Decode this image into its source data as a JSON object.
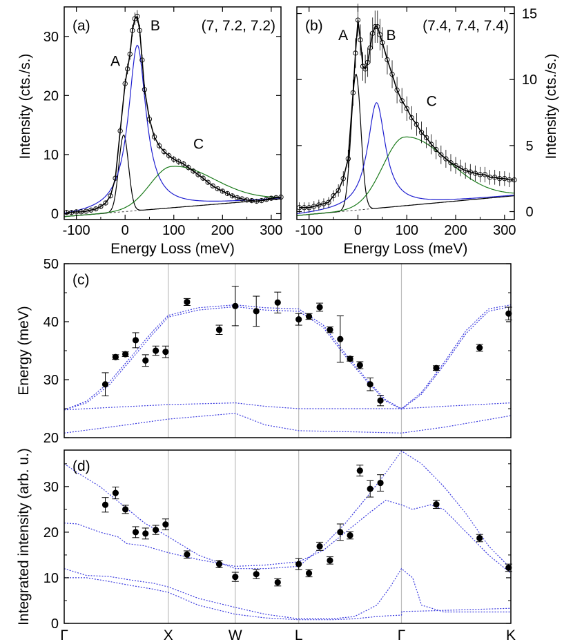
{
  "colors": {
    "black": "#000000",
    "blue": "#1f1fd0",
    "green": "#1a7a1a",
    "grey": "#bbbbbb",
    "fit_blue": "#3a3adf"
  },
  "chart_data": [
    {
      "type": "line",
      "panel_label": "(a)",
      "q_label": "(7, 7.2, 7.2)",
      "xlabel": "Energy Loss (meV)",
      "ylabel": "Intensity (cts./s.)",
      "xlim": [
        -125,
        320
      ],
      "ylim": [
        -1,
        35
      ],
      "xticks": [
        -100,
        0,
        100,
        200,
        300
      ],
      "yticks": [
        0,
        10,
        20,
        30
      ],
      "peak_labels": [
        {
          "text": "A",
          "color": "#000000",
          "x": -30,
          "y": 25
        },
        {
          "text": "B",
          "color": "#1f1fd0",
          "x": 52,
          "y": 31
        },
        {
          "text": "C",
          "color": "#1a7a1a",
          "x": 140,
          "y": 11
        }
      ],
      "components": [
        {
          "name": "A",
          "shape": "gaussian",
          "center": -3,
          "amp": 13,
          "width": 10,
          "color": "#000000"
        },
        {
          "name": "B",
          "shape": "lorentzian",
          "center": 25,
          "amp": 28,
          "width": 22,
          "color": "#1f1fd0"
        },
        {
          "name": "C",
          "shape": "skewed",
          "center": 95,
          "amp": 7,
          "width": 55,
          "color": "#1a7a1a"
        }
      ],
      "background": {
        "y0": -0.5,
        "y_end": 2.5
      },
      "data_points": {
        "x": [
          -120,
          -110,
          -100,
          -90,
          -80,
          -70,
          -60,
          -50,
          -40,
          -30,
          -20,
          -10,
          0,
          5,
          10,
          15,
          20,
          25,
          30,
          35,
          40,
          50,
          60,
          70,
          80,
          90,
          100,
          110,
          120,
          130,
          140,
          150,
          160,
          170,
          180,
          190,
          200,
          210,
          220,
          230,
          240,
          250,
          260,
          270,
          280,
          290,
          300,
          310,
          320
        ],
        "y": [
          0.2,
          0.2,
          0.3,
          0.3,
          0.4,
          0.6,
          0.8,
          1.2,
          1.8,
          3,
          6,
          14,
          22,
          24.5,
          27,
          31,
          33,
          33.4,
          31,
          26,
          21,
          16,
          13,
          11.5,
          10.5,
          9.8,
          9.2,
          8.8,
          8.4,
          7.8,
          7.2,
          6.6,
          6,
          5.3,
          4.7,
          4.2,
          3.8,
          3.4,
          3,
          2.7,
          2.5,
          2.3,
          2.2,
          2.1,
          2.2,
          2.4,
          2.6,
          2.7,
          2.8
        ]
      }
    },
    {
      "type": "line",
      "panel_label": "(b)",
      "q_label": "(7.4, 7.4, 7.4)",
      "xlabel": "Energy Loss (meV)",
      "ylabel": "Intensity (cts./s.)",
      "xlim": [
        -125,
        320
      ],
      "ylim": [
        -0.6,
        15.5
      ],
      "xticks": [
        -100,
        0,
        100,
        200,
        300
      ],
      "yticks": [
        0,
        5,
        10,
        15
      ],
      "peak_labels": [
        {
          "text": "A",
          "color": "#000000",
          "x": -40,
          "y": 13
        },
        {
          "text": "B",
          "color": "#1f1fd0",
          "x": 58,
          "y": 13
        },
        {
          "text": "C",
          "color": "#1a7a1a",
          "x": 140,
          "y": 8
        }
      ],
      "components": [
        {
          "name": "A",
          "shape": "gaussian",
          "center": -4,
          "amp": 10.3,
          "width": 10,
          "color": "#000000"
        },
        {
          "name": "B",
          "shape": "lorentzian",
          "center": 38,
          "amp": 8,
          "width": 22,
          "color": "#1f1fd0"
        },
        {
          "name": "C",
          "shape": "skewed",
          "center": 95,
          "amp": 5.2,
          "width": 55,
          "color": "#1a7a1a"
        }
      ],
      "background": {
        "y0": -0.3,
        "y_end": 1.2
      },
      "data_points": {
        "x": [
          -120,
          -110,
          -100,
          -90,
          -80,
          -70,
          -60,
          -50,
          -40,
          -30,
          -20,
          -10,
          -5,
          0,
          5,
          10,
          15,
          20,
          25,
          30,
          35,
          40,
          45,
          50,
          60,
          70,
          80,
          90,
          100,
          110,
          120,
          130,
          140,
          150,
          160,
          170,
          180,
          190,
          200,
          210,
          220,
          230,
          240,
          250,
          260,
          270,
          280,
          290,
          300,
          310,
          320
        ],
        "y": [
          0.3,
          0.3,
          0.3,
          0.4,
          0.5,
          0.6,
          0.7,
          1.2,
          1.6,
          2.5,
          4,
          9,
          12,
          14.5,
          13,
          11,
          10.8,
          11.3,
          12.4,
          13.5,
          14,
          14,
          13.4,
          12.8,
          11.5,
          10.4,
          9.2,
          8.4,
          7.8,
          7.1,
          6.6,
          6,
          5.6,
          5.1,
          4.7,
          4.3,
          4,
          3.7,
          3.5,
          3.3,
          3.1,
          3,
          2.9,
          2.8,
          2.8,
          2.6,
          2.6,
          2.5,
          2.5,
          2.4,
          2.4
        ]
      }
    },
    {
      "type": "scatter",
      "panel_label": "(c)",
      "ylabel": "Energy (meV)",
      "ylim": [
        20,
        50
      ],
      "yticks": [
        20,
        30,
        40,
        50
      ],
      "xlim": [
        0,
        10
      ],
      "xtick_labels": [
        {
          "label": "Γ",
          "x": 0
        },
        {
          "label": "X",
          "x": 2.33
        },
        {
          "label": "W",
          "x": 3.83
        },
        {
          "label": "L",
          "x": 5.25
        },
        {
          "label": "Γ",
          "x": 7.55
        },
        {
          "label": "K",
          "x": 10
        }
      ],
      "points": [
        {
          "x": 0.92,
          "y": 29.2,
          "err": 2.0
        },
        {
          "x": 1.15,
          "y": 33.9,
          "err": 0.4
        },
        {
          "x": 1.37,
          "y": 34.4,
          "err": 0.4
        },
        {
          "x": 1.6,
          "y": 36.8,
          "err": 1.3
        },
        {
          "x": 1.82,
          "y": 33.3,
          "err": 1.0
        },
        {
          "x": 2.05,
          "y": 35.0,
          "err": 0.8
        },
        {
          "x": 2.27,
          "y": 34.8,
          "err": 1.0
        },
        {
          "x": 2.75,
          "y": 43.4,
          "err": 0.6
        },
        {
          "x": 3.47,
          "y": 38.6,
          "err": 0.8
        },
        {
          "x": 3.83,
          "y": 42.7,
          "err": 3.4
        },
        {
          "x": 4.3,
          "y": 41.8,
          "err": 2.6
        },
        {
          "x": 4.78,
          "y": 43.3,
          "err": 1.8
        },
        {
          "x": 5.25,
          "y": 40.4,
          "err": 1.0
        },
        {
          "x": 5.48,
          "y": 40.9,
          "err": 0.5
        },
        {
          "x": 5.72,
          "y": 42.5,
          "err": 0.7
        },
        {
          "x": 5.95,
          "y": 38.6,
          "err": 0.5
        },
        {
          "x": 6.18,
          "y": 37.0,
          "err": 4.0
        },
        {
          "x": 6.4,
          "y": 33.6,
          "err": 0.4
        },
        {
          "x": 6.62,
          "y": 32.5,
          "err": 0.6
        },
        {
          "x": 6.85,
          "y": 29.2,
          "err": 1.1
        },
        {
          "x": 7.08,
          "y": 26.4,
          "err": 0.9
        },
        {
          "x": 8.33,
          "y": 32.0,
          "err": 0.4
        },
        {
          "x": 9.3,
          "y": 35.5,
          "err": 0.6
        },
        {
          "x": 9.95,
          "y": 41.4,
          "err": 1.1
        }
      ],
      "model_curves": [
        {
          "x": [
            0,
            0.5,
            1,
            1.5,
            2,
            2.33,
            3,
            3.83,
            4.5,
            5.25,
            5.8,
            6.3,
            6.8,
            7.2,
            7.55,
            8,
            8.5,
            9,
            9.5,
            10
          ],
          "y": [
            24.8,
            26,
            29,
            33.5,
            38,
            40.8,
            42,
            42.6,
            42,
            41.8,
            39,
            34,
            29.5,
            26.3,
            24.9,
            27.5,
            32.5,
            38,
            41.8,
            42.6
          ]
        },
        {
          "x": [
            0,
            0.5,
            1,
            1.5,
            2,
            2.33,
            3,
            3.83,
            4.5,
            5.25,
            5.8,
            6.3,
            6.8,
            7.2,
            7.55,
            8,
            8.5,
            9,
            9.5,
            10
          ],
          "y": [
            24.8,
            26.3,
            29.5,
            34,
            38.5,
            41.1,
            42.4,
            42.9,
            42.4,
            42.2,
            39.4,
            34.4,
            29.8,
            26.5,
            25.0,
            27.8,
            32.9,
            38.5,
            42.2,
            42.9
          ]
        },
        {
          "x": [
            0,
            1,
            2.33,
            3.83,
            4.5,
            5.25,
            6.5,
            7.55,
            8.5,
            10
          ],
          "y": [
            24.8,
            25.2,
            25.7,
            26,
            25.4,
            25,
            25,
            25,
            25.4,
            26
          ]
        },
        {
          "x": [
            0,
            1,
            2.33,
            3.83,
            4.5,
            5.25,
            6.5,
            7.55,
            8.5,
            10
          ],
          "y": [
            20.8,
            21.8,
            23.2,
            24.2,
            22.2,
            21.2,
            21,
            20.8,
            21.8,
            23.8
          ]
        }
      ]
    },
    {
      "type": "scatter",
      "panel_label": "(d)",
      "ylabel": "Integrated intensity (arb. u.)",
      "ylim": [
        0,
        38
      ],
      "yticks": [
        0,
        10,
        20,
        30
      ],
      "xlim": [
        0,
        10
      ],
      "xtick_labels": [
        {
          "label": "Γ",
          "x": 0
        },
        {
          "label": "X",
          "x": 2.33
        },
        {
          "label": "W",
          "x": 3.83
        },
        {
          "label": "L",
          "x": 5.25
        },
        {
          "label": "Γ",
          "x": 7.55
        },
        {
          "label": "K",
          "x": 10
        }
      ],
      "points": [
        {
          "x": 0.92,
          "y": 26.0,
          "err": 1.6
        },
        {
          "x": 1.15,
          "y": 28.6,
          "err": 1.3
        },
        {
          "x": 1.37,
          "y": 25.0,
          "err": 0.9
        },
        {
          "x": 1.6,
          "y": 20.0,
          "err": 1.2
        },
        {
          "x": 1.82,
          "y": 19.7,
          "err": 1.2
        },
        {
          "x": 2.05,
          "y": 20.5,
          "err": 1.0
        },
        {
          "x": 2.27,
          "y": 21.7,
          "err": 1.2
        },
        {
          "x": 2.75,
          "y": 15.1,
          "err": 0.8
        },
        {
          "x": 3.47,
          "y": 13.0,
          "err": 0.8
        },
        {
          "x": 3.83,
          "y": 10.2,
          "err": 1.0
        },
        {
          "x": 4.3,
          "y": 10.8,
          "err": 1.0
        },
        {
          "x": 4.78,
          "y": 9.0,
          "err": 0.8
        },
        {
          "x": 5.25,
          "y": 13.0,
          "err": 1.2
        },
        {
          "x": 5.48,
          "y": 11.0,
          "err": 0.8
        },
        {
          "x": 5.72,
          "y": 16.9,
          "err": 0.9
        },
        {
          "x": 5.95,
          "y": 13.8,
          "err": 0.8
        },
        {
          "x": 6.18,
          "y": 20.0,
          "err": 1.8
        },
        {
          "x": 6.4,
          "y": 19.3,
          "err": 0.8
        },
        {
          "x": 6.62,
          "y": 33.5,
          "err": 1.2
        },
        {
          "x": 6.85,
          "y": 29.5,
          "err": 1.8
        },
        {
          "x": 7.08,
          "y": 30.8,
          "err": 1.8
        },
        {
          "x": 8.33,
          "y": 26.1,
          "err": 0.9
        },
        {
          "x": 9.3,
          "y": 18.7,
          "err": 0.8
        },
        {
          "x": 9.95,
          "y": 12.2,
          "err": 0.8
        }
      ],
      "model_curves": [
        {
          "x": [
            0,
            0.3,
            0.8,
            1.3,
            1.8,
            2.33,
            3,
            3.83,
            4.5,
            5.25,
            5.8,
            6.3,
            6.8,
            7.2,
            7.55,
            8,
            8.5,
            9,
            9.5,
            10
          ],
          "y": [
            35,
            33,
            30,
            26,
            22,
            19,
            15,
            12,
            12,
            12.5,
            17,
            22,
            28,
            33,
            37.8,
            35,
            30,
            24,
            17,
            12
          ]
        },
        {
          "x": [
            0,
            0.3,
            0.8,
            1.2,
            1.4,
            1.8,
            2.33,
            3,
            3.83,
            4.5,
            5.25,
            5.8,
            6.3,
            6.8,
            7.2,
            7.55,
            7.8,
            8.2,
            8.5,
            9,
            9.5,
            10
          ],
          "y": [
            22,
            21.8,
            20,
            19,
            17.5,
            17,
            15.5,
            14,
            12.5,
            12.8,
            13.5,
            16,
            20,
            24,
            27,
            26,
            25,
            26,
            25,
            20,
            15,
            11
          ]
        },
        {
          "x": [
            0,
            0.5,
            1,
            1.5,
            2,
            2.33,
            3,
            3.83,
            4.5,
            5.25,
            6,
            6.5,
            7,
            7.3,
            7.55,
            7.8,
            8,
            8.5,
            9,
            9.5,
            10
          ],
          "y": [
            12,
            10.5,
            10.3,
            9.5,
            8.8,
            8.0,
            5.5,
            3.5,
            2.0,
            1.0,
            1.0,
            1.5,
            4,
            8,
            12,
            10,
            4,
            2.5,
            2.5,
            2.5,
            2.5
          ]
        },
        {
          "x": [
            0,
            0.5,
            1,
            1.5,
            2,
            2.33,
            3,
            3.83,
            4.5,
            5.25,
            6,
            6.5,
            7,
            7.3,
            7.55,
            7.56,
            8,
            9,
            10
          ],
          "y": [
            10,
            10,
            9.2,
            8.3,
            7.5,
            6.8,
            4,
            2,
            1.2,
            0.8,
            0.8,
            1,
            1.5,
            1.7,
            1.8,
            2.6,
            2.7,
            3,
            3.3
          ]
        }
      ]
    }
  ]
}
